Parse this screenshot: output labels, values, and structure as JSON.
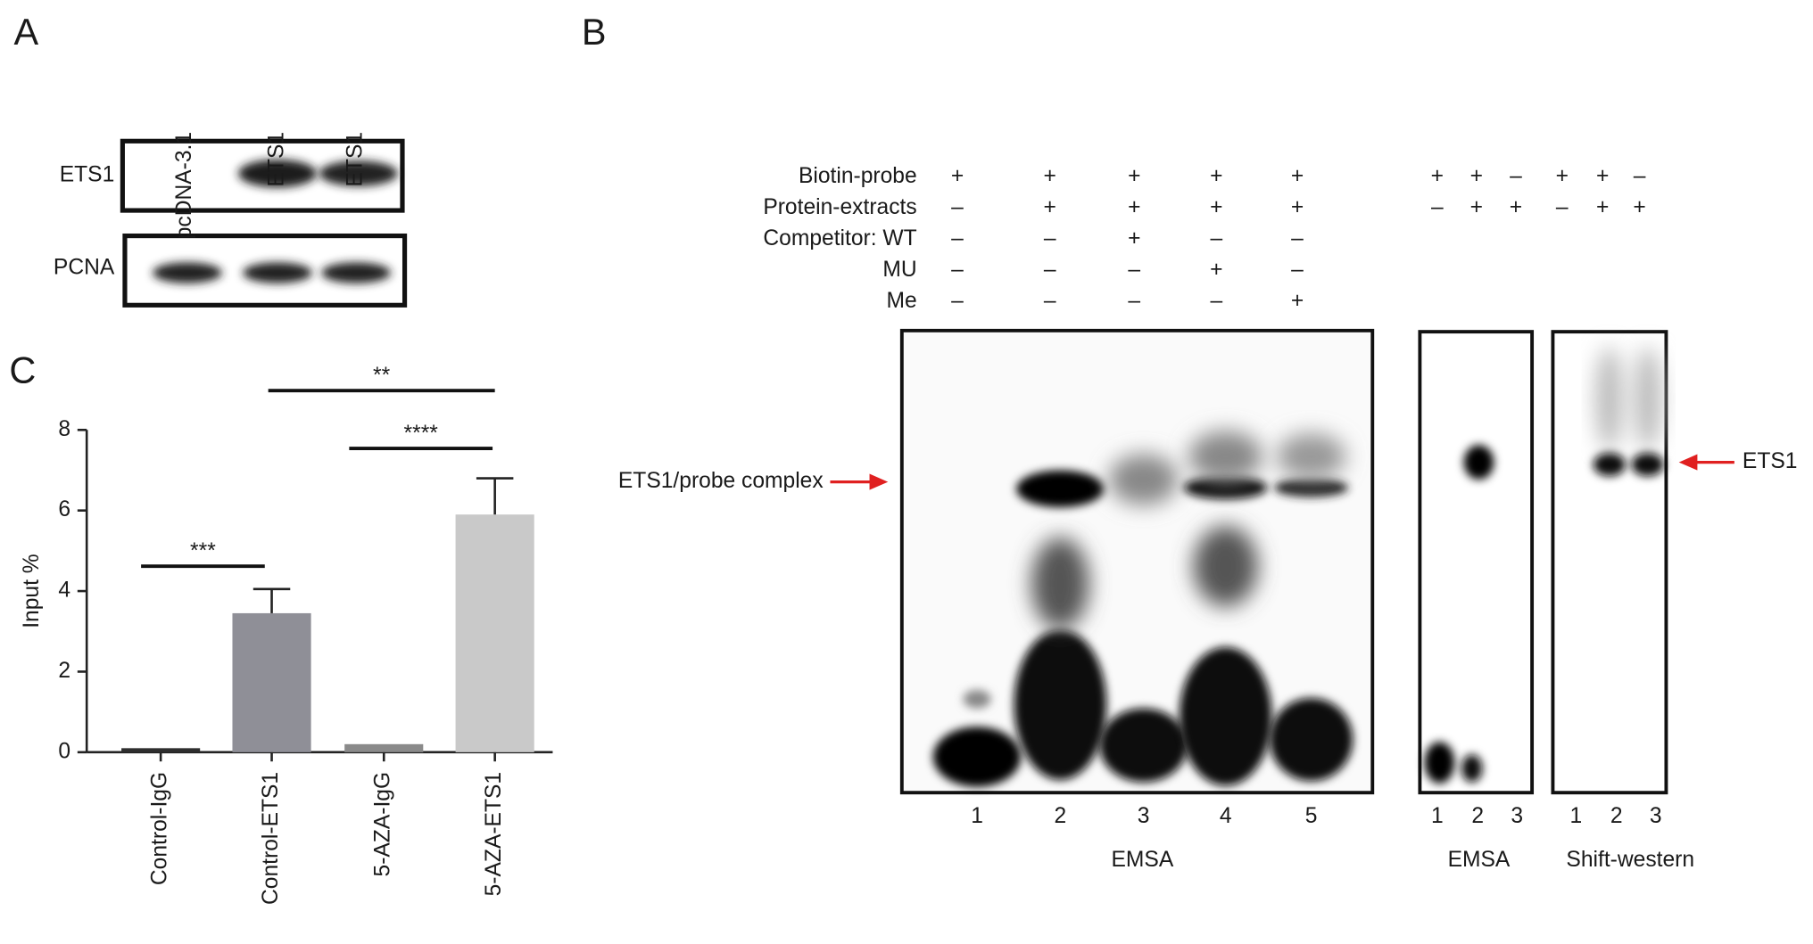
{
  "panel_a": {
    "letter": "A",
    "lanes": [
      "pcDNA-3.1",
      "ETS1",
      "ETS1"
    ],
    "rows": [
      "ETS1",
      "PCNA"
    ]
  },
  "panel_b": {
    "letter": "B",
    "rows": [
      {
        "label": "Biotin-probe",
        "signs": [
          "+",
          "+",
          "+",
          "+",
          "+"
        ],
        "signs_right": [
          "+",
          "+",
          "–",
          "+",
          "+",
          "–"
        ]
      },
      {
        "label": "Protein-extracts",
        "signs": [
          "–",
          "+",
          "+",
          "+",
          "+"
        ],
        "signs_right": [
          "–",
          "+",
          "+",
          "–",
          "+",
          "+"
        ]
      },
      {
        "label": "Competitor: WT",
        "signs": [
          "–",
          "–",
          "+",
          "–",
          "–"
        ]
      },
      {
        "label": "MU",
        "signs": [
          "–",
          "–",
          "–",
          "+",
          "–"
        ]
      },
      {
        "label": "Me",
        "signs": [
          "–",
          "–",
          "–",
          "–",
          "+"
        ]
      }
    ],
    "complex_label": "ETS1/probe complex",
    "ets1_label": "ETS1",
    "gels": [
      {
        "lanes": [
          "1",
          "2",
          "3",
          "4",
          "5"
        ],
        "caption": "EMSA"
      },
      {
        "lanes": [
          "1",
          "2",
          "3"
        ],
        "caption": "EMSA"
      },
      {
        "lanes": [
          "1",
          "2",
          "3"
        ],
        "caption": "Shift-western"
      }
    ]
  },
  "panel_c": {
    "letter": "C"
  },
  "chart_data": {
    "type": "bar",
    "y_label": "Input  %",
    "categories": [
      "Control-IgG",
      "Control-ETS1",
      "5-AZA-IgG",
      "5-AZA-ETS1"
    ],
    "values": [
      0.1,
      3.45,
      0.2,
      5.9
    ],
    "errors": [
      0,
      0.6,
      0,
      0.9
    ],
    "colors": [
      "#2e2e2e",
      "#8f8f97",
      "#8a8a8a",
      "#c9c9c9"
    ],
    "ylim": [
      0,
      8
    ],
    "yticks": [
      0,
      2,
      4,
      6,
      8
    ],
    "significance": [
      {
        "label": "***",
        "between": [
          0,
          1
        ]
      },
      {
        "label": "**",
        "between": [
          1,
          3
        ]
      },
      {
        "label": "****",
        "between": [
          2,
          3
        ]
      }
    ]
  }
}
